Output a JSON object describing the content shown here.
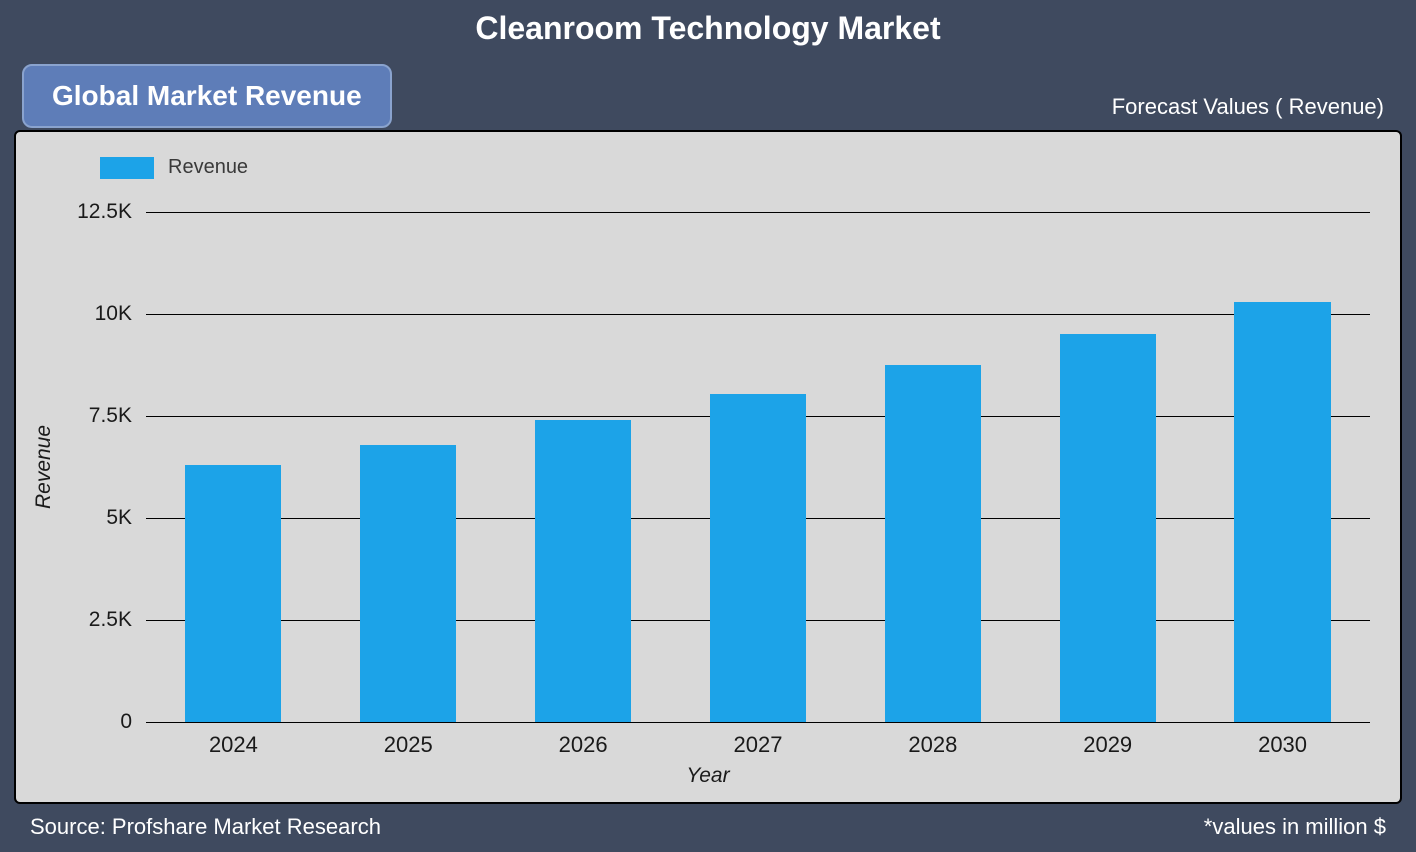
{
  "title": "Cleanroom Technology Market",
  "subtitle_badge": "Global Market Revenue",
  "forecast_label": "Forecast Values ( Revenue)",
  "footer_left": "Source: Profshare Market Research",
  "footer_right": "*values in million $",
  "legend": {
    "label": "Revenue",
    "swatch_color": "#1ca3e8"
  },
  "chart": {
    "type": "bar",
    "background_color": "#d9d9d9",
    "panel_border_color": "#000000",
    "panel_border_radius": 6,
    "bar_color": "#1ca3e8",
    "bar_width_ratio": 0.55,
    "grid_color": "#000000",
    "grid_line_width": 1.5,
    "ylabel": "Revenue",
    "xlabel": "Year",
    "label_fontsize": 21,
    "label_fontstyle": "italic",
    "tick_fontsize": 21,
    "ylim": [
      0,
      12500
    ],
    "ytick_step": 2500,
    "ytick_labels": [
      "0",
      "2.5K",
      "5K",
      "7.5K",
      "10K",
      "12.5K"
    ],
    "categories": [
      "2024",
      "2025",
      "2026",
      "2027",
      "2028",
      "2029",
      "2030"
    ],
    "values": [
      6300,
      6800,
      7400,
      8050,
      8750,
      9500,
      10300
    ]
  },
  "page": {
    "background_color": "#3f4a5f",
    "title_color": "#ffffff",
    "title_fontsize": 32,
    "badge_bg": "#5e7db8",
    "badge_border": "#8aa3ce",
    "badge_text_color": "#ffffff",
    "footer_text_color": "#ffffff"
  }
}
